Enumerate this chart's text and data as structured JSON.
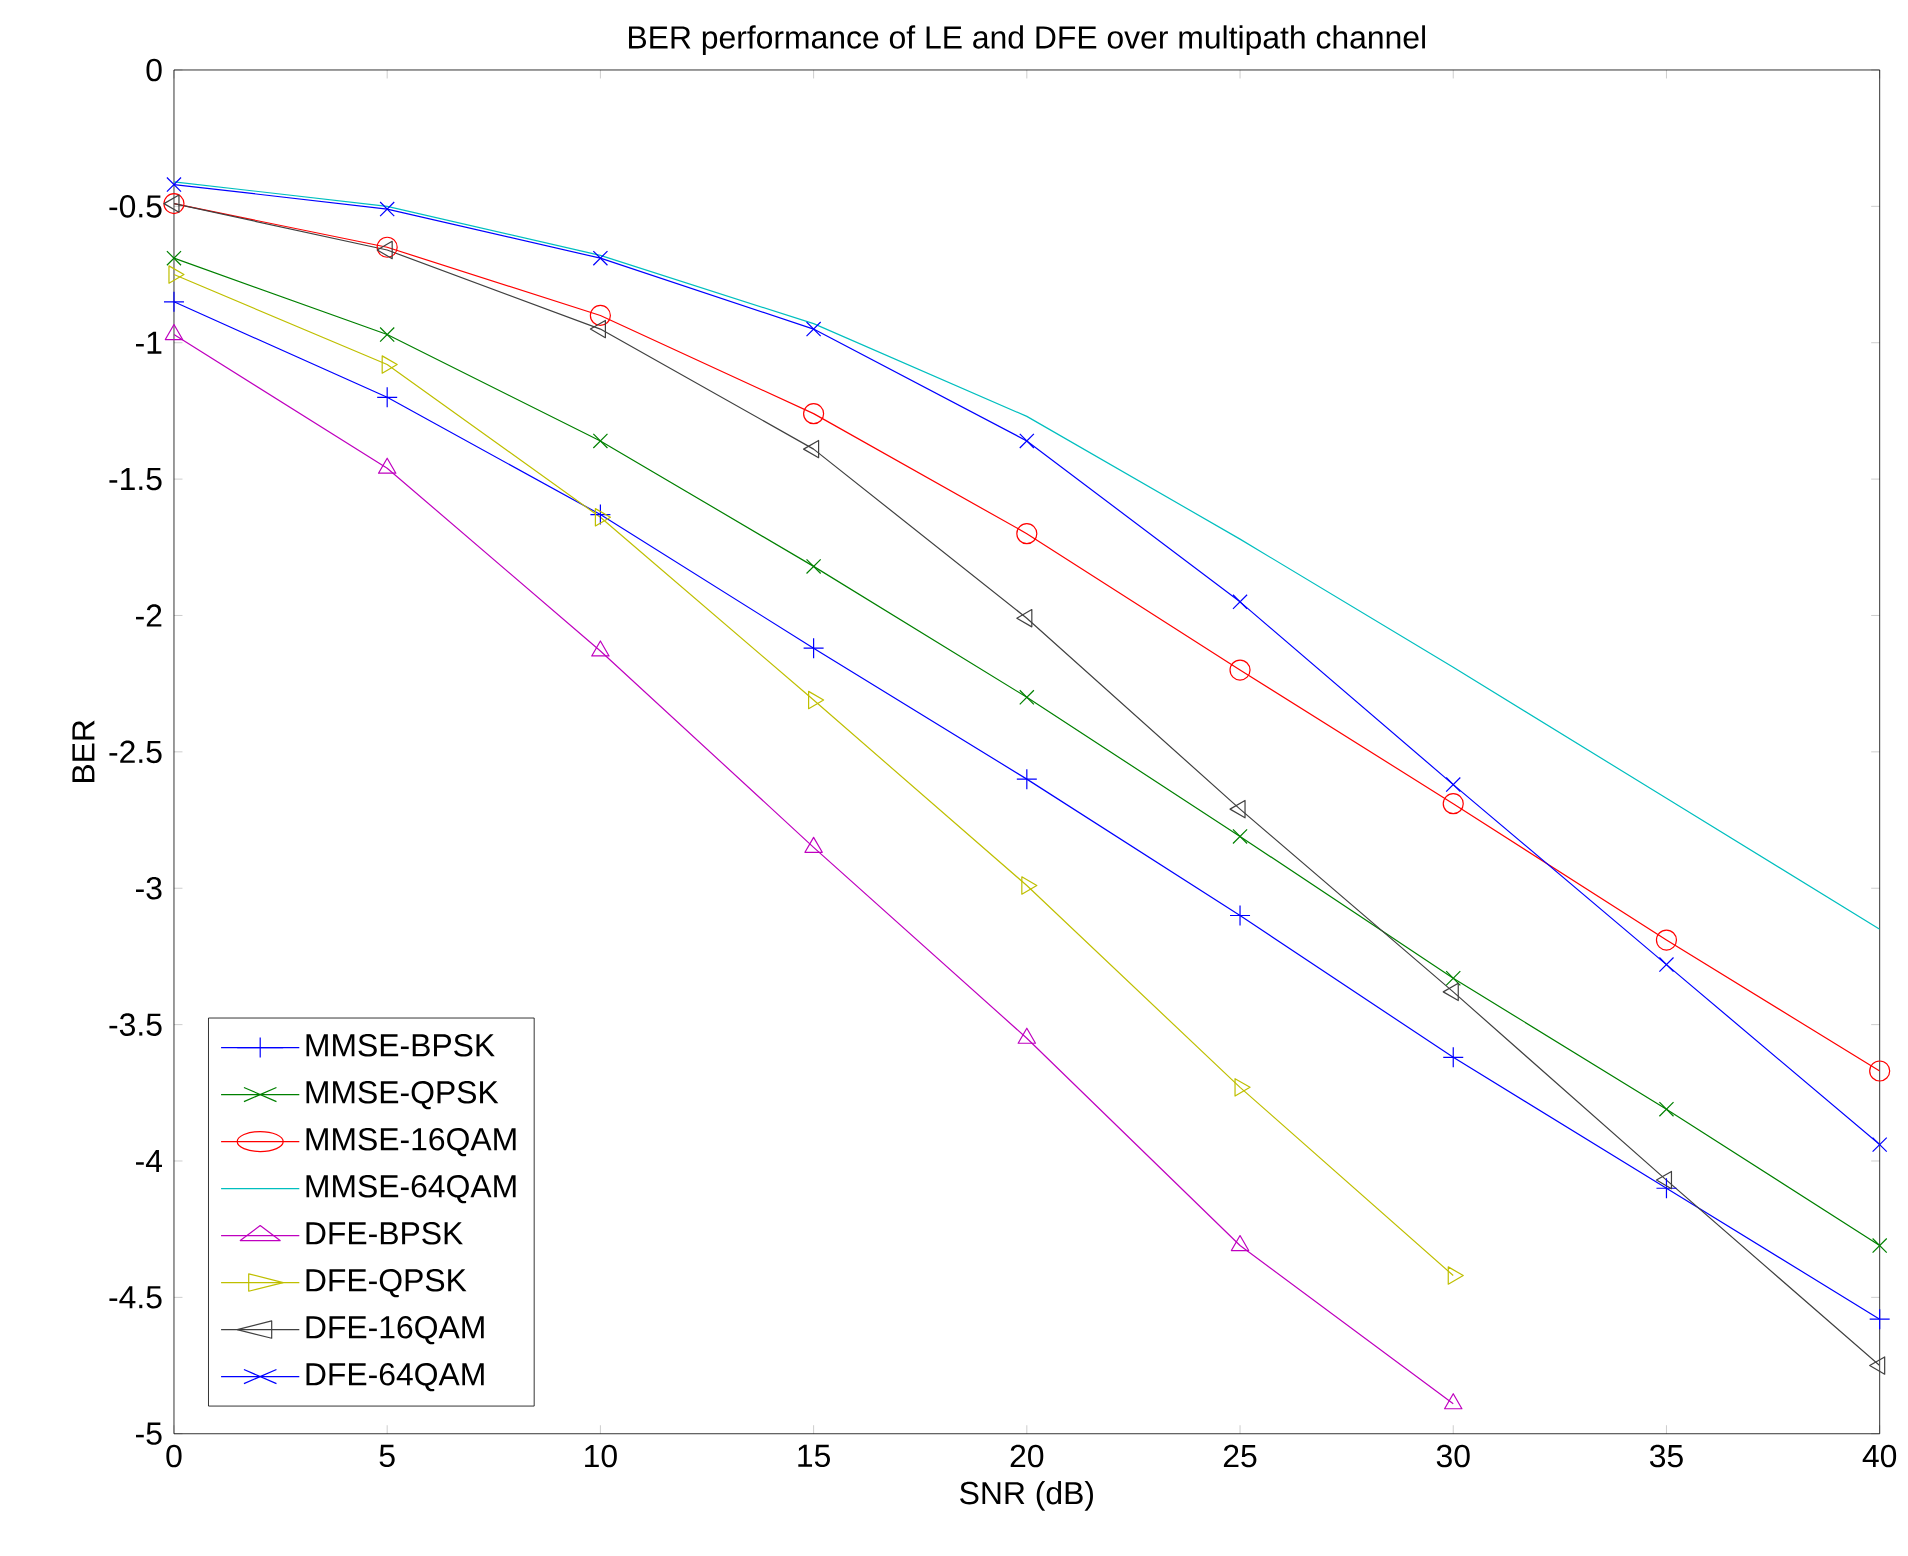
{
  "chart_data": {
    "type": "line",
    "title": "BER performance of LE and DFE over multipath channel",
    "xlabel": "SNR (dB)",
    "ylabel": "BER",
    "x": [
      0,
      5,
      10,
      15,
      20,
      25,
      30,
      35,
      40
    ],
    "xlim": [
      0,
      40
    ],
    "xticks": [
      0,
      5,
      10,
      15,
      20,
      25,
      30,
      35,
      40
    ],
    "ylim": [
      -5,
      0
    ],
    "yticks": [
      -5,
      -4.5,
      -4,
      -3.5,
      -3,
      -2.5,
      -2,
      -1.5,
      -1,
      -0.5,
      0
    ],
    "grid": false,
    "legend": "bottom left",
    "line_style": "solid",
    "series": [
      {
        "name": "MMSE-BPSK",
        "color": "#0000ff",
        "marker": "plus",
        "values": [
          -0.85,
          -1.2,
          -1.63,
          -2.12,
          -2.6,
          -3.1,
          -3.62,
          -4.1,
          -4.58
        ]
      },
      {
        "name": "MMSE-QPSK",
        "color": "#008000",
        "marker": "cross",
        "values": [
          -0.69,
          -0.97,
          -1.36,
          -1.82,
          -2.3,
          -2.81,
          -3.33,
          -3.81,
          -4.31
        ]
      },
      {
        "name": "MMSE-16QAM",
        "color": "#ff0000",
        "marker": "circle",
        "values": [
          -0.49,
          -0.65,
          -0.9,
          -1.26,
          -1.7,
          -2.2,
          -2.69,
          -3.19,
          -3.67
        ]
      },
      {
        "name": "MMSE-64QAM",
        "color": "#00bfbf",
        "marker": "none",
        "values": [
          -0.41,
          -0.5,
          -0.68,
          -0.93,
          -1.27,
          -1.72,
          -2.19,
          -2.67,
          -3.15
        ]
      },
      {
        "name": "DFE-BPSK",
        "color": "#bf00bf",
        "marker": "triangle",
        "values": [
          -0.97,
          -1.46,
          -2.13,
          -2.85,
          -3.55,
          -4.31,
          -4.89,
          null,
          null
        ]
      },
      {
        "name": "DFE-QPSK",
        "color": "#bfbf00",
        "marker": "triangle-right",
        "values": [
          -0.75,
          -1.08,
          -1.64,
          -2.31,
          -2.99,
          -3.73,
          -4.42,
          null,
          null
        ]
      },
      {
        "name": "DFE-16QAM",
        "color": "#404040",
        "marker": "triangle-left",
        "values": [
          -0.49,
          -0.66,
          -0.95,
          -1.39,
          -2.01,
          -2.71,
          -3.38,
          -4.07,
          -4.75
        ]
      },
      {
        "name": "DFE-64QAM",
        "color": "#0000ff",
        "marker": "cross",
        "values": [
          -0.42,
          -0.51,
          -0.69,
          -0.95,
          -1.36,
          -1.95,
          -2.62,
          -3.28,
          -3.94
        ]
      }
    ]
  }
}
